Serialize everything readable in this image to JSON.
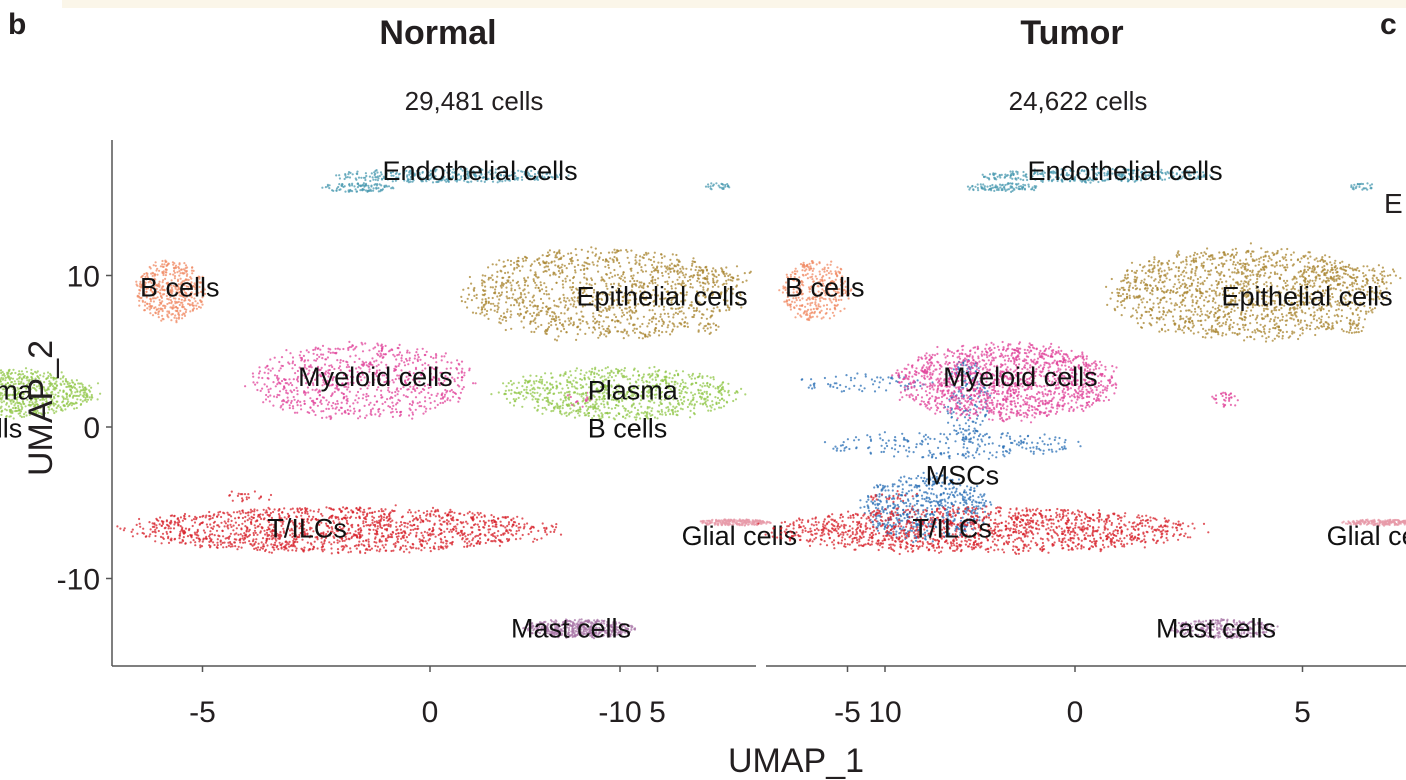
{
  "figure": {
    "panel_b": "b",
    "panel_c": "c",
    "panel_c_partial": "E",
    "colors": {
      "Endothelial cells": "#4a9ab0",
      "B cells": "#f08a63",
      "Epithelial cells": "#a8842f",
      "Myeloid cells": "#e0439a",
      "Plasma B cells": "#92c74a",
      "MSCs": "#2a6fb5",
      "T/ILCs": "#d7202a",
      "Glial cells": "#e79aa8",
      "Mast cells": "#a876a7"
    }
  },
  "chart_data": [
    {
      "type": "scatter",
      "title": "Normal",
      "subtitle": "29,481 cells",
      "xlabel": "UMAP_1",
      "ylabel": "UMAP_2",
      "xlim": [
        -14,
        14.5
      ],
      "ylim": [
        -15.5,
        19
      ],
      "xticks": [
        -10,
        -5,
        0,
        5,
        10
      ],
      "yticks": [
        -10,
        0,
        10
      ],
      "clusters": [
        {
          "name": "Endothelial cells",
          "label": "Endothelial cells",
          "cx": 1.5,
          "cy": 16.5,
          "density": 0.6
        },
        {
          "name": "B cells",
          "label": "B cells",
          "cx": -5.7,
          "cy": 9.0,
          "density": 0.8
        },
        {
          "name": "Epithelial cells",
          "label": "Epithelial cells",
          "cx": 4.0,
          "cy": 8.5,
          "density": 0.8
        },
        {
          "name": "Myeloid cells",
          "label": "Myeloid cells",
          "cx": -1.5,
          "cy": 3.0,
          "density": 0.55
        },
        {
          "name": "Plasma B cells",
          "label": "Plasma\nB cells",
          "cx": -10.2,
          "cy": 2.0,
          "density": 1.0
        },
        {
          "name": "MSCs",
          "label": "MSCs",
          "cx": 11.0,
          "cy": -2.0,
          "density": 0.85
        },
        {
          "name": "T/ILCs",
          "label": "T/ILCs",
          "cx": -2.5,
          "cy": -6.8,
          "density": 1.0
        },
        {
          "name": "Glial cells",
          "label": "Glial cells",
          "cx": 6.7,
          "cy": -6.3,
          "density": 0.4
        },
        {
          "name": "Mast cells",
          "label": "Mast cells",
          "cx": 3.3,
          "cy": -13.3,
          "density": 0.9
        }
      ]
    },
    {
      "type": "scatter",
      "title": "Tumor",
      "subtitle": "24,622 cells",
      "xlabel": "UMAP_1",
      "ylabel": "UMAP_2",
      "xlim": [
        -14,
        14.5
      ],
      "ylim": [
        -15.5,
        19
      ],
      "xticks": [
        -10,
        -5,
        0,
        5,
        10
      ],
      "yticks": [
        -10,
        0,
        10
      ],
      "clusters": [
        {
          "name": "Endothelial cells",
          "label": "Endothelial cells",
          "cx": 1.5,
          "cy": 16.5,
          "density": 0.6
        },
        {
          "name": "B cells",
          "label": "B cells",
          "cx": -5.7,
          "cy": 9.0,
          "density": 0.6
        },
        {
          "name": "Epithelial cells",
          "label": "Epithelial cells",
          "cx": 4.5,
          "cy": 8.5,
          "density": 1.0
        },
        {
          "name": "Myeloid cells",
          "label": "Myeloid cells",
          "cx": -1.5,
          "cy": 3.5,
          "density": 1.0
        },
        {
          "name": "Plasma B cells",
          "label": "Plasma\nB cells",
          "cx": -10.2,
          "cy": 2.0,
          "density": 0.6
        },
        {
          "name": "MSCs",
          "label": "MSCs",
          "cx": 11.0,
          "cy": -2.0,
          "density": 0.55
        },
        {
          "name": "T/ILCs",
          "label": "T/ILCs",
          "cx": -2.5,
          "cy": -6.8,
          "density": 1.0
        },
        {
          "name": "Glial cells",
          "label": "Glial cells",
          "cx": 6.7,
          "cy": -6.3,
          "density": 0.4
        },
        {
          "name": "Mast cells",
          "label": "Mast cells",
          "cx": 3.3,
          "cy": -13.3,
          "density": 0.5
        }
      ]
    }
  ]
}
